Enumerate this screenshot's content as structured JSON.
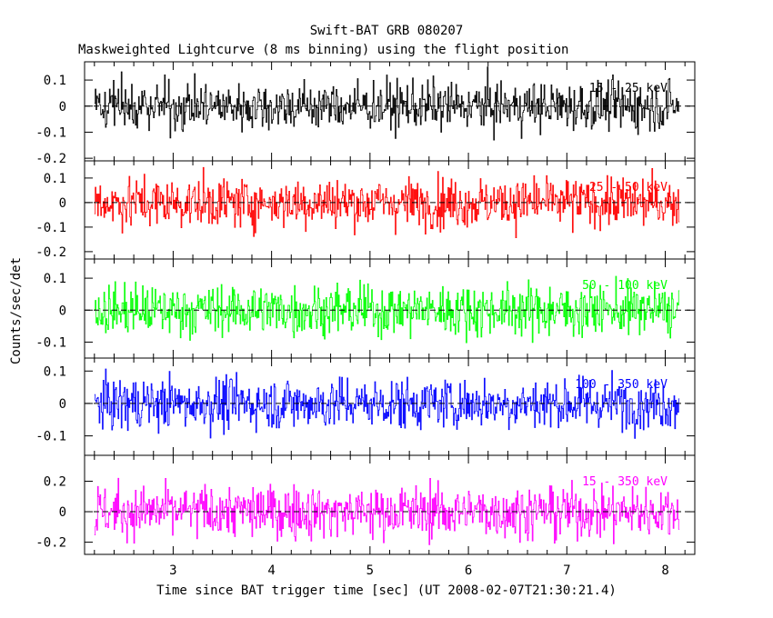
{
  "chart_data": {
    "type": "line",
    "title": "Swift-BAT GRB 080207",
    "subtitle": "Maskweighted Lightcurve (8 ms binning) using the flight position",
    "xlabel": "Time since BAT trigger time [sec] (UT 2008-02-07T21:30:21.4)",
    "ylabel": "Counts/sec/det",
    "xlim": [
      2.1,
      8.3
    ],
    "x_ticks": [
      "3",
      "4",
      "5",
      "6",
      "7",
      "8"
    ],
    "x_tick_values": [
      3,
      4,
      5,
      6,
      7,
      8
    ],
    "data_x_range": [
      2.2,
      8.14
    ],
    "bin_width_sec": 0.008,
    "grid": false,
    "zero_line": "dashed",
    "panels": [
      {
        "band": "15 - 25 keV",
        "color": "#000000",
        "ylim": [
          -0.21,
          0.17
        ],
        "y_ticks": [
          "0.1",
          "0",
          "-0.1",
          "-0.2"
        ],
        "y_tick_values": [
          0.1,
          0,
          -0.1,
          -0.2
        ],
        "amplitude": 0.065
      },
      {
        "band": "25 - 50 keV",
        "color": "#ff0000",
        "ylim": [
          -0.23,
          0.17
        ],
        "y_ticks": [
          "0.1",
          "0",
          "-0.1",
          "-0.2"
        ],
        "y_tick_values": [
          0.1,
          0,
          -0.1,
          -0.2
        ],
        "amplitude": 0.07
      },
      {
        "band": "50 - 100 keV",
        "color": "#00ff00",
        "ylim": [
          -0.15,
          0.16
        ],
        "y_ticks": [
          "0.1",
          "0",
          "-0.1"
        ],
        "y_tick_values": [
          0.1,
          0,
          -0.1
        ],
        "amplitude": 0.055
      },
      {
        "band": "100 - 350 keV",
        "color": "#0000ff",
        "ylim": [
          -0.16,
          0.14
        ],
        "y_ticks": [
          "0.1",
          "0",
          "-0.1"
        ],
        "y_tick_values": [
          0.1,
          0,
          -0.1
        ],
        "amplitude": 0.055
      },
      {
        "band": "15 - 350 keV",
        "color": "#ff00ff",
        "ylim": [
          -0.28,
          0.37
        ],
        "y_ticks": [
          "0.2",
          "0",
          "-0.2"
        ],
        "y_tick_values": [
          0.2,
          0,
          -0.2
        ],
        "amplitude": 0.12
      }
    ]
  }
}
